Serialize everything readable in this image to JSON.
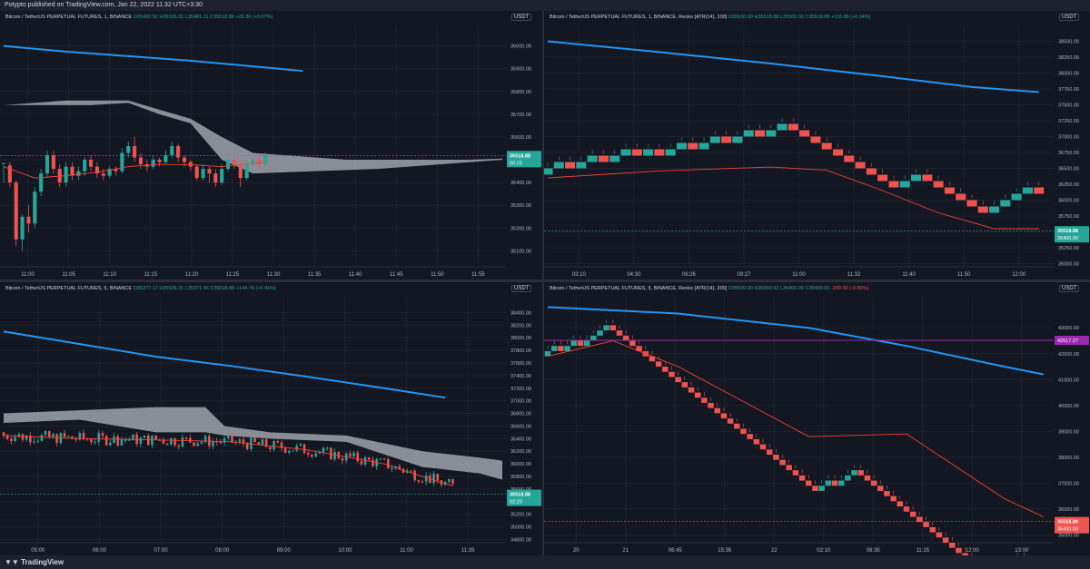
{
  "header": {
    "published": "Potypto published on TradingView.com, Jan 22, 2022 11:32 UTC+3:30"
  },
  "footer": {
    "brand": "TradingView"
  },
  "colors": {
    "up": "#26a69a",
    "down": "#ef5350",
    "ma_blue": "#2196f3",
    "ma_red": "#f44336",
    "cloud": "#b2b5be",
    "level_purple": "#9c27b0"
  },
  "chart_data": [
    {
      "id": "tl",
      "type": "candlestick",
      "legend": {
        "symbol": "Bitcoin / TetherUS PERPETUAL FUTURES, 1, BINANCE",
        "o": "O35492.52",
        "h": "H35536.31",
        "l": "L35481.11",
        "c": "C35518.88",
        "chg": "+26.36 (+0.07%)"
      },
      "unit": "USDT",
      "ylim": [
        35030,
        36090
      ],
      "yticks": [
        "36000.00",
        "35900.00",
        "35800.00",
        "35700.00",
        "35600.00",
        "35500.00",
        "35400.00",
        "35300.00",
        "35200.00",
        "35100.00"
      ],
      "yvals": [
        36000,
        35900,
        35800,
        35700,
        35600,
        35500,
        35400,
        35300,
        35200,
        35100
      ],
      "xticks": [
        "11:00",
        "11:05",
        "11:10",
        "11:15",
        "11:20",
        "11:25",
        "11:30",
        "11:35",
        "11:40",
        "11:45",
        "11:50",
        "11:55"
      ],
      "price_label": {
        "value": "35518.88",
        "sub": "00:20",
        "y": 35518.88,
        "color": "#26a69a"
      },
      "candles": [
        [
          35480,
          35485,
          35400,
          35475
        ],
        [
          35475,
          35400,
          35380,
          35490
        ],
        [
          35400,
          35150,
          35120,
          35410
        ],
        [
          35150,
          35250,
          35100,
          35260
        ],
        [
          35250,
          35220,
          35180,
          35300
        ],
        [
          35220,
          35360,
          35200,
          35380
        ],
        [
          35360,
          35440,
          35340,
          35460
        ],
        [
          35440,
          35520,
          35420,
          35540
        ],
        [
          35520,
          35460,
          35440,
          35540
        ],
        [
          35460,
          35400,
          35380,
          35480
        ],
        [
          35400,
          35470,
          35380,
          35490
        ],
        [
          35470,
          35430,
          35410,
          35490
        ],
        [
          35430,
          35450,
          35410,
          35470
        ],
        [
          35450,
          35500,
          35430,
          35510
        ],
        [
          35500,
          35470,
          35450,
          35520
        ],
        [
          35470,
          35440,
          35420,
          35490
        ],
        [
          35440,
          35430,
          35410,
          35460
        ],
        [
          35430,
          35460,
          35420,
          35470
        ],
        [
          35460,
          35450,
          35430,
          35470
        ],
        [
          35450,
          35530,
          35440,
          35550
        ],
        [
          35530,
          35560,
          35510,
          35580
        ],
        [
          35560,
          35510,
          35490,
          35600
        ],
        [
          35510,
          35480,
          35460,
          35530
        ],
        [
          35480,
          35470,
          35450,
          35500
        ],
        [
          35470,
          35500,
          35460,
          35520
        ],
        [
          35500,
          35490,
          35470,
          35510
        ],
        [
          35490,
          35520,
          35480,
          35540
        ],
        [
          35520,
          35560,
          35510,
          35580
        ],
        [
          35560,
          35510,
          35490,
          35570
        ],
        [
          35510,
          35490,
          35470,
          35520
        ],
        [
          35490,
          35470,
          35450,
          35500
        ],
        [
          35470,
          35420,
          35410,
          35480
        ],
        [
          35420,
          35460,
          35410,
          35480
        ],
        [
          35460,
          35440,
          35400,
          35470
        ],
        [
          35440,
          35400,
          35380,
          35460
        ],
        [
          35400,
          35460,
          35390,
          35480
        ],
        [
          35460,
          35500,
          35450,
          35510
        ],
        [
          35500,
          35480,
          35460,
          35510
        ],
        [
          35480,
          35420,
          35380,
          35490
        ],
        [
          35420,
          35480,
          35410,
          35500
        ],
        [
          35480,
          35500,
          35470,
          35510
        ],
        [
          35500,
          35480,
          35460,
          35520
        ],
        [
          35480,
          35520,
          35470,
          35530
        ]
      ],
      "ma": [
        [
          0,
          35470
        ],
        [
          5,
          35420
        ],
        [
          10,
          35430
        ],
        [
          15,
          35445
        ],
        [
          20,
          35470
        ],
        [
          25,
          35480
        ],
        [
          30,
          35478
        ],
        [
          35,
          35470
        ],
        [
          42,
          35490
        ]
      ],
      "ma_long": [
        [
          0,
          36000
        ],
        [
          10,
          35975
        ],
        [
          20,
          35955
        ],
        [
          30,
          35935
        ],
        [
          36,
          35920
        ],
        [
          42,
          35905
        ],
        [
          48,
          35890
        ]
      ],
      "cloud_top": [
        [
          0,
          35740
        ],
        [
          10,
          35760
        ],
        [
          14,
          35760
        ],
        [
          20,
          35760
        ],
        [
          25,
          35720
        ],
        [
          30,
          35680
        ],
        [
          35,
          35600
        ],
        [
          40,
          35530
        ],
        [
          45,
          35520
        ],
        [
          50,
          35510
        ],
        [
          55,
          35500
        ],
        [
          60,
          35500
        ],
        [
          65,
          35500
        ],
        [
          70,
          35500
        ],
        [
          75,
          35500
        ],
        [
          80,
          35505
        ]
      ],
      "cloud_bot": [
        [
          0,
          35740
        ],
        [
          10,
          35740
        ],
        [
          14,
          35740
        ],
        [
          20,
          35750
        ],
        [
          25,
          35700
        ],
        [
          30,
          35660
        ],
        [
          35,
          35500
        ],
        [
          40,
          35440
        ],
        [
          45,
          35445
        ],
        [
          50,
          35450
        ],
        [
          55,
          35455
        ],
        [
          60,
          35460
        ],
        [
          65,
          35470
        ],
        [
          70,
          35480
        ],
        [
          75,
          35490
        ],
        [
          80,
          35500
        ]
      ],
      "xcount": 80
    },
    {
      "id": "tr",
      "type": "renko",
      "legend": {
        "symbol": "Bitcoin / TetherUS PERPETUAL FUTURES, 1, BINANCE, Renko [ATR(14), 100]",
        "o": "O35500.00",
        "h": "H35518.88",
        "l": "L35500.00",
        "c": "C35518.88",
        "chg": "+118.88 (+0.34%)"
      },
      "unit": "USDT",
      "ylim": [
        34950,
        38750
      ],
      "yticks": [
        "38500.00",
        "38250.00",
        "38000.00",
        "37750.00",
        "37500.00",
        "37250.00",
        "37000.00",
        "36750.00",
        "36500.00",
        "36250.00",
        "36000.00",
        "35750.00",
        "35500.00",
        "35250.00",
        "35000.00"
      ],
      "yvals": [
        38500,
        38250,
        38000,
        37750,
        37500,
        37250,
        37000,
        36750,
        36500,
        36250,
        36000,
        35750,
        35500,
        35250,
        35000
      ],
      "xticks": [
        "03:10",
        "04:30",
        "06:26",
        "09:27",
        "11:00",
        "11:32",
        "11:40",
        "11:50",
        "12:00"
      ],
      "price_label": {
        "value": "35518.88",
        "sub": "35400.00",
        "y": 35518.88,
        "color": "#26a69a"
      },
      "renko_steps": [
        1,
        1,
        -1,
        1,
        1,
        -1,
        1,
        1,
        -1,
        1,
        -1,
        1,
        1,
        -1,
        1,
        1,
        -1,
        1,
        1,
        -1,
        1,
        1,
        -1,
        -1,
        -1,
        -1,
        -1,
        -1,
        -1,
        -1,
        -1,
        -1,
        1,
        1,
        -1,
        -1,
        -1,
        -1,
        -1,
        -1,
        1,
        1,
        1,
        1,
        -1
      ],
      "renko_start": 36400,
      "brick": 100,
      "ma": [
        [
          0,
          36350
        ],
        [
          10,
          36460
        ],
        [
          20,
          36520
        ],
        [
          25,
          36470
        ],
        [
          30,
          36150
        ],
        [
          35,
          35800
        ],
        [
          40,
          35550
        ],
        [
          44,
          35550
        ]
      ],
      "ma_long": [
        [
          0,
          38500
        ],
        [
          10,
          38330
        ],
        [
          20,
          38150
        ],
        [
          30,
          37950
        ],
        [
          38,
          37780
        ],
        [
          44,
          37700
        ]
      ],
      "xcount": 45
    },
    {
      "id": "bl",
      "type": "candlestick",
      "legend": {
        "symbol": "Bitcoin / TetherUS PERPETUAL FUTURES, 5, BINANCE",
        "o": "O35377.17",
        "h": "H35536.31",
        "l": "L35371.96",
        "c": "C35518.88",
        "chg": "+144.74 (+0.41%)"
      },
      "unit": "USDT",
      "ylim": [
        34750,
        38650
      ],
      "yticks": [
        "38400.00",
        "38200.00",
        "38000.00",
        "37800.00",
        "37600.00",
        "37400.00",
        "37200.00",
        "37000.00",
        "36800.00",
        "36600.00",
        "36400.00",
        "36200.00",
        "36000.00",
        "35800.00",
        "35600.00",
        "35400.00",
        "35200.00",
        "35000.00",
        "34800.00"
      ],
      "yvals": [
        38400,
        38200,
        38000,
        37800,
        37600,
        37400,
        37200,
        37000,
        36800,
        36600,
        36400,
        36200,
        36000,
        35800,
        35600,
        35400,
        35200,
        35000,
        34800
      ],
      "xticks": [
        "05:00",
        "06:00",
        "07:00",
        "08:00",
        "09:00",
        "10:00",
        "11:00",
        "11:35"
      ],
      "price_label": {
        "value": "35518.88",
        "sub": "02:20",
        "y": 35518.88,
        "color": "#26a69a"
      },
      "candles_rand_seed": 7,
      "ma": [
        [
          0,
          36450
        ],
        [
          20,
          36400
        ],
        [
          40,
          36380
        ],
        [
          60,
          36350
        ],
        [
          80,
          36220
        ],
        [
          100,
          36000
        ],
        [
          110,
          35800
        ],
        [
          118,
          35650
        ]
      ],
      "ma_long": [
        [
          0,
          38100
        ],
        [
          20,
          37900
        ],
        [
          40,
          37700
        ],
        [
          60,
          37550
        ],
        [
          80,
          37380
        ],
        [
          100,
          37200
        ],
        [
          116,
          37050
        ]
      ],
      "cloud_top": [
        [
          0,
          36800
        ],
        [
          20,
          36850
        ],
        [
          40,
          36900
        ],
        [
          53,
          36900
        ],
        [
          58,
          36600
        ],
        [
          70,
          36500
        ],
        [
          90,
          36450
        ],
        [
          110,
          36200
        ],
        [
          125,
          36100
        ],
        [
          131,
          36050
        ]
      ],
      "cloud_bot": [
        [
          0,
          36650
        ],
        [
          20,
          36700
        ],
        [
          40,
          36500
        ],
        [
          53,
          36500
        ],
        [
          58,
          36450
        ],
        [
          70,
          36400
        ],
        [
          90,
          36350
        ],
        [
          110,
          35950
        ],
        [
          125,
          35850
        ],
        [
          131,
          35750
        ]
      ],
      "xcount": 131
    },
    {
      "id": "br",
      "type": "renko",
      "legend": {
        "symbol": "Bitcoin / TetherUS PERPETUAL FUTURES, 5, BINANCE, Renko [ATR(14), 200]",
        "o": "O35600.00",
        "h": "H35900.92",
        "l": "L35400.00",
        "c": "C35400.00",
        "chg": "-200.00 (-0.56%)"
      },
      "unit": "USDT",
      "ylim": [
        34700,
        44200
      ],
      "yticks": [
        "43000.00",
        "42000.00",
        "41000.00",
        "40000.00",
        "39000.00",
        "38000.00",
        "37000.00",
        "36000.00",
        "35000.00"
      ],
      "yvals": [
        43000,
        42000,
        41000,
        40000,
        39000,
        38000,
        37000,
        36000,
        35000
      ],
      "xticks": [
        "20",
        "21",
        "06:45",
        "15:35",
        "22",
        "02:10",
        "06:35",
        "11:15",
        "12:00",
        "13:00"
      ],
      "price_label": {
        "value": "35518.88",
        "sub": "35400.00",
        "y": 35518.88,
        "color": "#ef5350"
      },
      "level": {
        "value": "42517.27",
        "y": 42517.27
      },
      "renko_start": 41900,
      "brick": 200,
      "renko_steps": [
        1,
        1,
        -1,
        1,
        1,
        -1,
        1,
        1,
        1,
        1,
        -1,
        -1,
        -1,
        -1,
        -1,
        -1,
        -1,
        -1,
        -1,
        -1,
        -1,
        -1,
        -1,
        -1,
        -1,
        -1,
        -1,
        -1,
        -1,
        -1,
        -1,
        -1,
        -1,
        -1,
        -1,
        -1,
        -1,
        -1,
        -1,
        -1,
        -1,
        -1,
        1,
        1,
        -1,
        1,
        1,
        1,
        -1,
        -1,
        -1,
        -1,
        -1,
        -1,
        -1,
        -1,
        -1,
        -1,
        -1,
        -1,
        -1,
        -1,
        -1,
        -1,
        -1,
        -1,
        -1,
        -1,
        1,
        1,
        -1,
        1,
        1,
        -1,
        -1,
        -1
      ],
      "ma": [
        [
          0,
          41900
        ],
        [
          10,
          42500
        ],
        [
          20,
          41500
        ],
        [
          40,
          38800
        ],
        [
          55,
          38900
        ],
        [
          70,
          36400
        ],
        [
          76,
          35700
        ]
      ],
      "ma_long": [
        [
          0,
          43800
        ],
        [
          20,
          43550
        ],
        [
          40,
          43000
        ],
        [
          55,
          42300
        ],
        [
          70,
          41500
        ],
        [
          76,
          41200
        ]
      ],
      "xcount": 77
    }
  ]
}
